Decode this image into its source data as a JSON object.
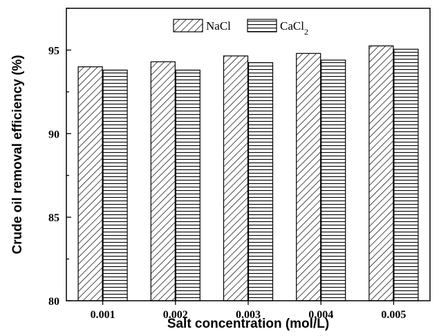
{
  "chart_data": {
    "type": "bar",
    "categories": [
      "0.001",
      "0.002",
      "0.003",
      "0.004",
      "0.005"
    ],
    "series": [
      {
        "name": "NaCl",
        "pattern": "diagonal-hatch",
        "values": [
          94.0,
          94.3,
          94.65,
          94.8,
          95.25
        ]
      },
      {
        "name": "CaCl2",
        "pattern": "horizontal-hatch",
        "values": [
          93.8,
          93.8,
          94.25,
          94.4,
          95.05
        ]
      }
    ],
    "title": "",
    "xlabel": "Salt concentration (mol/L)",
    "ylabel": "Crude oil removal efficiency (%)",
    "ylim": [
      80,
      97.5
    ],
    "yticks": [
      "80",
      "85",
      "90",
      "95"
    ],
    "legend_position": "top-center",
    "grid": false,
    "colors": {
      "stroke": "#000000",
      "background": "#ffffff"
    }
  }
}
